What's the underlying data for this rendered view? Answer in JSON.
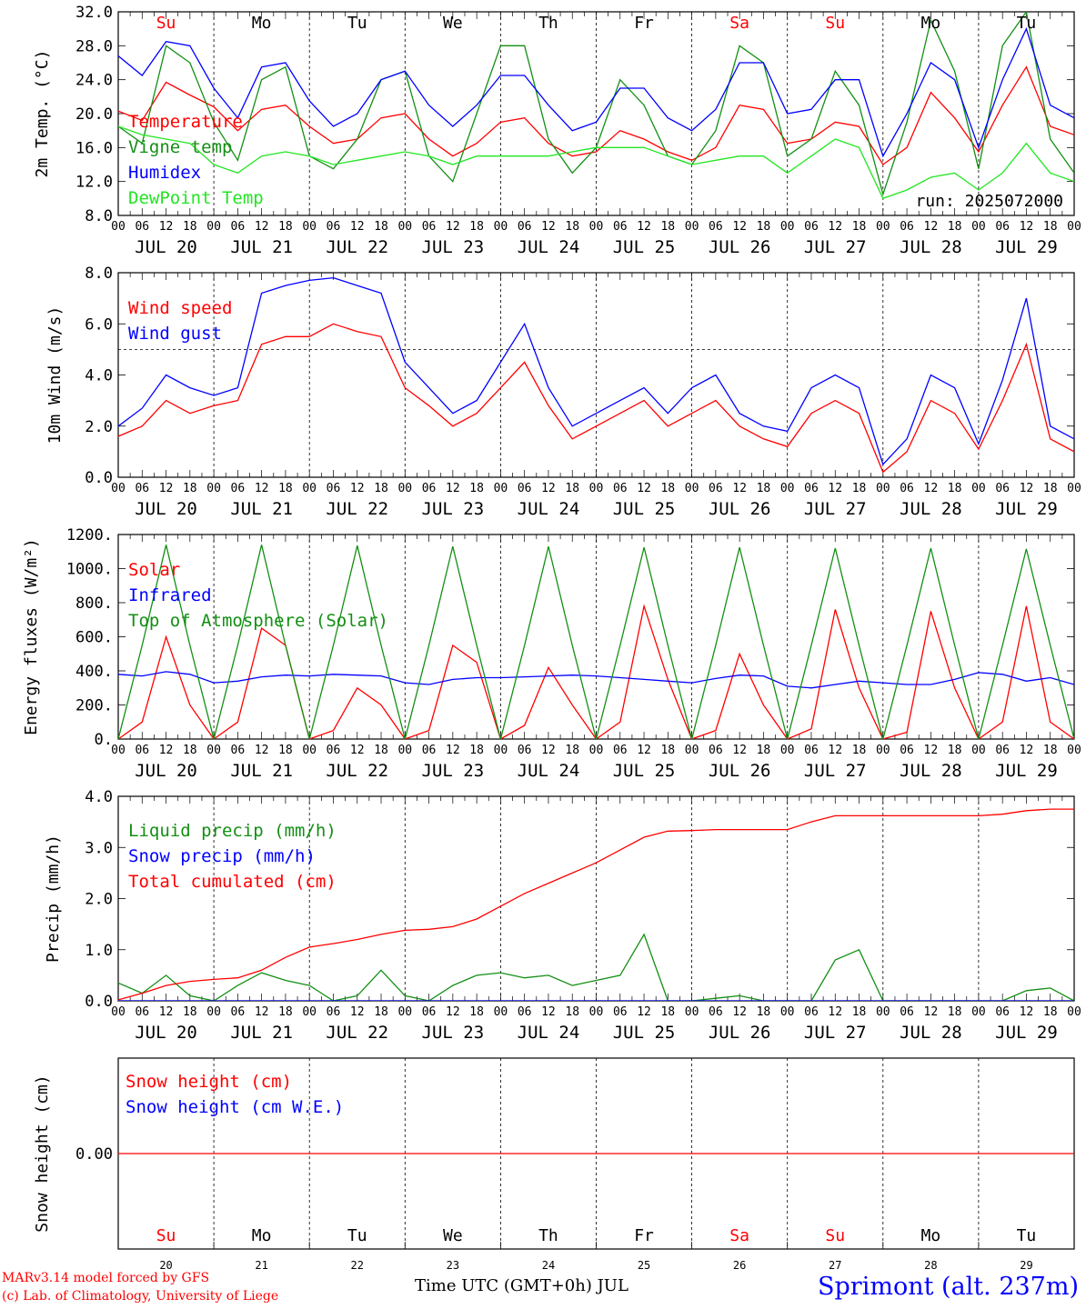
{
  "colors": {
    "red": "#ff0000",
    "dark_green": "#138f13",
    "blue": "#0000ff",
    "light_green": "#22e622",
    "black": "#000000"
  },
  "chart_data": [
    {
      "type": "line",
      "ylabel": "2m Temp. (°C)",
      "ylim": [
        8,
        32
      ],
      "yticks": [
        "8.0",
        "12.0",
        "16.0",
        "20.0",
        "24.0",
        "28.0",
        "32.0"
      ],
      "xlabel": "",
      "run_label": "run: 2025072000",
      "day_names_top": [
        "Su",
        "Mo",
        "Tu",
        "We",
        "Th",
        "Fr",
        "Sa",
        "Su",
        "Mo",
        "Tu"
      ],
      "x_hours": [
        0,
        6,
        12,
        18,
        24,
        30,
        36,
        42,
        48,
        54,
        60,
        66,
        72,
        78,
        84,
        90,
        96,
        102,
        108,
        114,
        120,
        126,
        132,
        138,
        144,
        150,
        156,
        162,
        168,
        174,
        180,
        186,
        192,
        198,
        204,
        210,
        216,
        222,
        228,
        234,
        240
      ],
      "series": [
        {
          "name": "Temperature",
          "color": "red",
          "values": [
            20.3,
            19.2,
            23.7,
            22.2,
            20.8,
            18.0,
            20.5,
            21.0,
            18.5,
            16.5,
            17.0,
            19.5,
            20.0,
            17.0,
            15.0,
            16.5,
            19.0,
            19.5,
            16.5,
            15.0,
            15.5,
            18.0,
            17.0,
            15.5,
            14.5,
            16.0,
            21.0,
            20.5,
            16.5,
            17.0,
            19.0,
            18.5,
            14.0,
            16.0,
            22.5,
            19.5,
            15.5,
            21.0,
            25.5,
            18.5,
            17.5
          ]
        },
        {
          "name": "Vigne temp",
          "color": "dark_green",
          "values": [
            18.5,
            16.5,
            28.0,
            26.0,
            19.0,
            14.5,
            24.0,
            25.5,
            15.0,
            13.5,
            17.0,
            24.0,
            25.0,
            15.0,
            12.0,
            20.0,
            28.0,
            28.0,
            17.0,
            13.0,
            16.0,
            24.0,
            21.0,
            15.0,
            14.0,
            18.0,
            28.0,
            26.0,
            15.0,
            17.0,
            25.0,
            21.0,
            10.5,
            19.0,
            31.0,
            25.0,
            13.5,
            28.0,
            32.0,
            17.0,
            13.0
          ]
        },
        {
          "name": "Humidex",
          "color": "blue",
          "values": [
            26.8,
            24.5,
            28.5,
            28.0,
            23.0,
            19.5,
            25.5,
            26.0,
            21.5,
            18.5,
            20.0,
            24.0,
            25.0,
            21.0,
            18.5,
            21.0,
            24.5,
            24.5,
            21.0,
            18.0,
            19.0,
            23.0,
            23.0,
            19.5,
            18.0,
            20.5,
            26.0,
            26.0,
            20.0,
            20.5,
            24.0,
            24.0,
            15.0,
            20.0,
            26.0,
            24.0,
            16.0,
            24.0,
            30.0,
            21.0,
            19.5
          ]
        },
        {
          "name": "DewPoint Temp",
          "color": "light_green",
          "values": [
            18.5,
            17.5,
            17.0,
            16.5,
            14.0,
            13.0,
            15.0,
            15.5,
            15.0,
            14.0,
            14.5,
            15.0,
            15.5,
            15.0,
            14.0,
            15.0,
            15.0,
            15.0,
            15.0,
            15.5,
            16.0,
            16.0,
            16.0,
            15.0,
            14.0,
            14.5,
            15.0,
            15.0,
            13.0,
            15.0,
            17.0,
            16.0,
            10.0,
            11.0,
            12.5,
            13.0,
            11.0,
            13.0,
            16.5,
            13.0,
            12.0
          ]
        }
      ]
    },
    {
      "type": "line",
      "ylabel": "10m Wind (m/s)",
      "ylim": [
        0,
        8
      ],
      "yticks": [
        "0.0",
        "2.0",
        "4.0",
        "6.0",
        "8.0"
      ],
      "reference_line": 5.0,
      "x_hours": [
        0,
        6,
        12,
        18,
        24,
        30,
        36,
        42,
        48,
        54,
        60,
        66,
        72,
        78,
        84,
        90,
        96,
        102,
        108,
        114,
        120,
        126,
        132,
        138,
        144,
        150,
        156,
        162,
        168,
        174,
        180,
        186,
        192,
        198,
        204,
        210,
        216,
        222,
        228,
        234,
        240
      ],
      "series": [
        {
          "name": "Wind speed",
          "color": "red",
          "values": [
            1.6,
            2.0,
            3.0,
            2.5,
            2.8,
            3.0,
            5.2,
            5.5,
            5.5,
            6.0,
            5.7,
            5.5,
            3.5,
            2.8,
            2.0,
            2.5,
            3.5,
            4.5,
            2.8,
            1.5,
            2.0,
            2.5,
            3.0,
            2.0,
            2.5,
            3.0,
            2.0,
            1.5,
            1.2,
            2.5,
            3.0,
            2.5,
            0.2,
            1.0,
            3.0,
            2.5,
            1.1,
            3.0,
            5.2,
            1.5,
            1.0
          ]
        },
        {
          "name": "Wind gust",
          "color": "blue",
          "values": [
            2.0,
            2.7,
            4.0,
            3.5,
            3.2,
            3.5,
            7.2,
            7.5,
            7.7,
            7.8,
            7.5,
            7.2,
            4.5,
            3.5,
            2.5,
            3.0,
            4.5,
            6.0,
            3.5,
            2.0,
            2.5,
            3.0,
            3.5,
            2.5,
            3.5,
            4.0,
            2.5,
            2.0,
            1.8,
            3.5,
            4.0,
            3.5,
            0.5,
            1.5,
            4.0,
            3.5,
            1.3,
            3.8,
            7.0,
            2.0,
            1.5
          ]
        }
      ]
    },
    {
      "type": "line",
      "ylabel": "Energy fluxes (W/m²)",
      "ylim": [
        0,
        1200
      ],
      "yticks": [
        "0.",
        "200.",
        "400.",
        "600.",
        "800.",
        "1000.",
        "1200."
      ],
      "x_hours": [
        0,
        6,
        12,
        18,
        24,
        30,
        36,
        42,
        48,
        54,
        60,
        66,
        72,
        78,
        84,
        90,
        96,
        102,
        108,
        114,
        120,
        126,
        132,
        138,
        144,
        150,
        156,
        162,
        168,
        174,
        180,
        186,
        192,
        198,
        204,
        210,
        216,
        222,
        228,
        234,
        240
      ],
      "series": [
        {
          "name": "Solar",
          "color": "red",
          "values": [
            0,
            100,
            600,
            200,
            0,
            100,
            650,
            550,
            0,
            50,
            300,
            200,
            0,
            50,
            550,
            450,
            0,
            80,
            420,
            200,
            0,
            100,
            780,
            350,
            0,
            50,
            500,
            200,
            0,
            60,
            760,
            300,
            0,
            40,
            750,
            300,
            0,
            100,
            780,
            100,
            0
          ]
        },
        {
          "name": "Infrared",
          "color": "blue",
          "values": [
            380,
            370,
            395,
            380,
            330,
            340,
            365,
            375,
            370,
            380,
            375,
            370,
            330,
            320,
            350,
            360,
            360,
            365,
            370,
            375,
            370,
            360,
            350,
            340,
            330,
            355,
            375,
            370,
            310,
            300,
            320,
            340,
            330,
            320,
            320,
            350,
            390,
            380,
            340,
            360,
            320
          ]
        },
        {
          "name": "Top of Atmosphere (Solar)",
          "color": "dark_green",
          "values": [
            0,
            550,
            1140,
            550,
            0,
            550,
            1140,
            550,
            0,
            550,
            1135,
            550,
            0,
            550,
            1130,
            550,
            0,
            550,
            1130,
            550,
            0,
            550,
            1125,
            550,
            0,
            550,
            1125,
            550,
            0,
            550,
            1120,
            550,
            0,
            550,
            1120,
            550,
            0,
            550,
            1115,
            550,
            0
          ]
        }
      ]
    },
    {
      "type": "line",
      "ylabel": "Precip (mm/h)",
      "ylim": [
        0,
        4
      ],
      "yticks": [
        "0.0",
        "1.0",
        "2.0",
        "3.0",
        "4.0"
      ],
      "x_hours": [
        0,
        6,
        12,
        18,
        24,
        30,
        36,
        42,
        48,
        54,
        60,
        66,
        72,
        78,
        84,
        90,
        96,
        102,
        108,
        114,
        120,
        126,
        132,
        138,
        144,
        150,
        156,
        162,
        168,
        174,
        180,
        186,
        192,
        198,
        204,
        210,
        216,
        222,
        228,
        234,
        240
      ],
      "series": [
        {
          "name": "Liquid precip (mm/h)",
          "color": "dark_green",
          "values": [
            0.35,
            0.15,
            0.5,
            0.1,
            0.0,
            0.3,
            0.55,
            0.4,
            0.3,
            0.0,
            0.1,
            0.6,
            0.1,
            0.0,
            0.3,
            0.5,
            0.55,
            0.45,
            0.5,
            0.3,
            0.4,
            0.5,
            1.3,
            0.0,
            0.0,
            0.05,
            0.1,
            0.0,
            0.0,
            0.0,
            0.8,
            1.0,
            0.0,
            0.0,
            0.0,
            0.0,
            0.0,
            0.0,
            0.2,
            0.25,
            0.0
          ]
        },
        {
          "name": "Snow precip (mm/h)",
          "color": "blue",
          "values": [
            0,
            0,
            0,
            0,
            0,
            0,
            0,
            0,
            0,
            0,
            0,
            0,
            0,
            0,
            0,
            0,
            0,
            0,
            0,
            0,
            0,
            0,
            0,
            0,
            0,
            0,
            0,
            0,
            0,
            0,
            0,
            0,
            0,
            0,
            0,
            0,
            0,
            0,
            0,
            0,
            0
          ]
        },
        {
          "name": "Total cumulated (cm)",
          "color": "red",
          "values": [
            0.02,
            0.15,
            0.3,
            0.38,
            0.42,
            0.45,
            0.6,
            0.85,
            1.05,
            1.12,
            1.2,
            1.3,
            1.38,
            1.4,
            1.45,
            1.6,
            1.85,
            2.1,
            2.3,
            2.5,
            2.7,
            2.95,
            3.2,
            3.32,
            3.33,
            3.35,
            3.35,
            3.35,
            3.35,
            3.5,
            3.62,
            3.62,
            3.62,
            3.62,
            3.62,
            3.62,
            3.62,
            3.65,
            3.72,
            3.75,
            3.75
          ]
        }
      ]
    },
    {
      "type": "line",
      "ylabel": "Snow height (cm)",
      "ylim": [
        -1,
        1
      ],
      "yticks": [
        "0.00"
      ],
      "x_hours": [
        0,
        240
      ],
      "series": [
        {
          "name": "Snow height (cm)",
          "color": "red",
          "values": [
            0.0,
            0.0
          ]
        },
        {
          "name": "Snow height (cm W.E.)",
          "color": "blue",
          "values": []
        }
      ]
    }
  ],
  "x_axis": {
    "hour_labels": [
      "00",
      "06",
      "12",
      "18"
    ],
    "end_label": "00",
    "dates": [
      "JUL 20",
      "JUL 21",
      "JUL 22",
      "JUL 23",
      "JUL 24",
      "JUL 25",
      "JUL 26",
      "JUL 27",
      "JUL 28",
      "JUL 29"
    ],
    "day_numbers": [
      "20",
      "21",
      "22",
      "23",
      "24",
      "25",
      "26",
      "27",
      "28",
      "29"
    ],
    "day_names": [
      "Su",
      "Mo",
      "Tu",
      "We",
      "Th",
      "Fr",
      "Sa",
      "Su",
      "Mo",
      "Tu"
    ],
    "weekend_flags": [
      true,
      false,
      false,
      false,
      false,
      false,
      true,
      true,
      false,
      false
    ],
    "title": "Time UTC (GMT+0h) JUL"
  },
  "footer": {
    "credit_line1": "MARv3.14 model forced by GFS",
    "credit_line2": "(c) Lab. of Climatology, University of Liege",
    "station": "Sprimont (alt. 237m)"
  }
}
